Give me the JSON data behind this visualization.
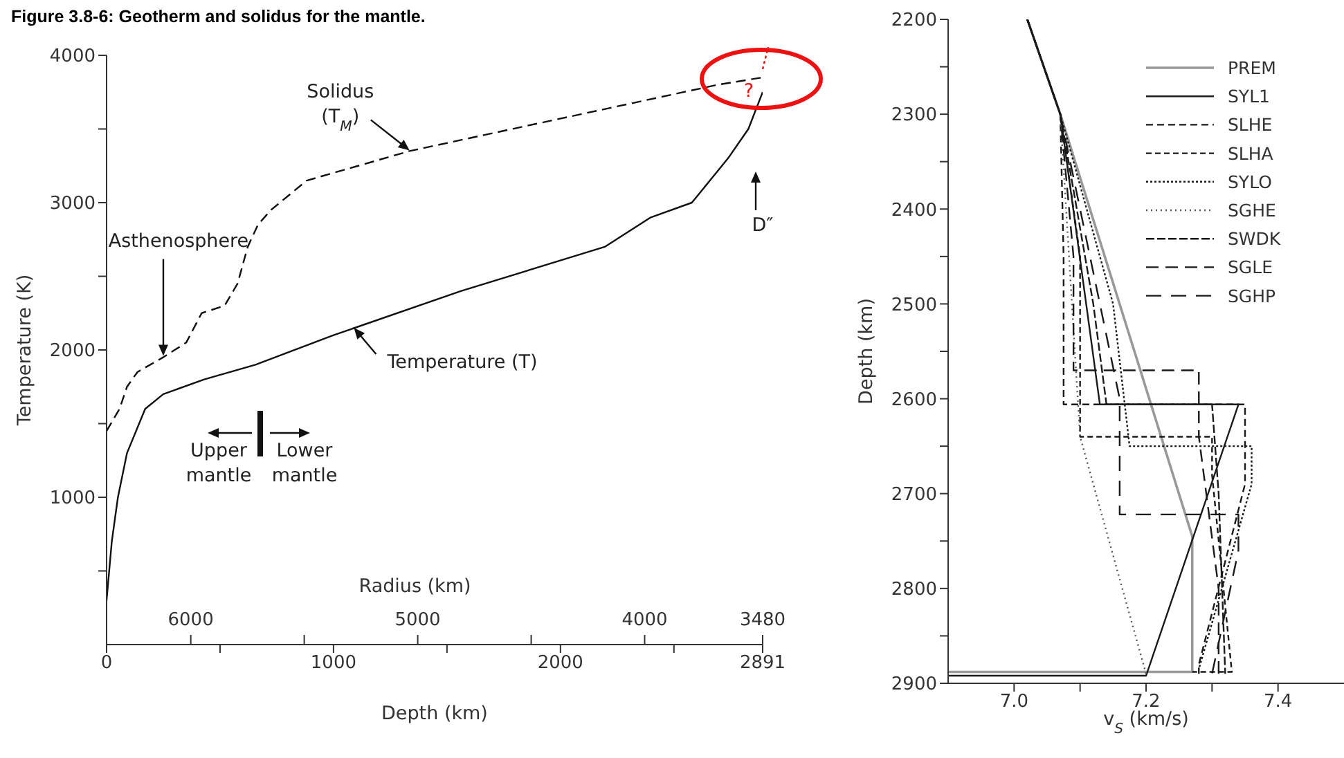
{
  "chart_data": [
    {
      "type": "line",
      "title": "Figure 3.8-6: Geotherm and solidus for the mantle.",
      "xlabel": "Depth (km)",
      "ylabel": "Temperature (K)",
      "x2label": "Radius (km)",
      "xlim": [
        0,
        2891
      ],
      "xticks": [
        0,
        {
          "value": 500,
          "label": null
        },
        1000,
        {
          "value": 1500,
          "label": null
        },
        2000,
        {
          "value": 2500,
          "label": null
        },
        2891
      ],
      "x2lim": [
        6371,
        3480
      ],
      "x2ticks": [
        6000,
        {
          "value": 5500,
          "label": null
        },
        5000,
        {
          "value": 4500,
          "label": null
        },
        4000,
        3480
      ],
      "ylim": [
        0,
        4000
      ],
      "yticks": [
        {
          "value": 500,
          "label": null
        },
        1000,
        {
          "value": 1500,
          "label": null
        },
        2000,
        {
          "value": 2500,
          "label": null
        },
        3000,
        {
          "value": 3500,
          "label": null
        },
        4000
      ],
      "series": [
        {
          "color": "#111111",
          "line_style": "solid",
          "x": [
            0,
            23,
            50,
            90,
            170,
            250,
            430,
            656,
            1000,
            1561,
            2195,
            2398,
            2579,
            2738,
            2828,
            2891
          ],
          "values": [
            300,
            700,
            1000,
            1300,
            1600,
            1700,
            1800,
            1900,
            2100,
            2400,
            2700,
            2900,
            3000,
            3300,
            3500,
            3750
          ]
        },
        {
          "color": "#111111",
          "line_style": "dashed",
          "x": [
            0,
            57,
            90,
            136,
            249,
            351,
            419,
            520,
            577,
            622,
            667,
            724,
            882,
            1109,
            1335,
            1787,
            2240,
            2692,
            2891
          ],
          "values": [
            1450,
            1600,
            1750,
            1850,
            1950,
            2050,
            2250,
            2300,
            2450,
            2700,
            2850,
            2950,
            3150,
            3250,
            3350,
            3500,
            3650,
            3800,
            3850
          ]
        }
      ],
      "annotations": [
        {
          "text": "Solidus (T$_{M}$)",
          "x": 1335,
          "y": 3355
        },
        {
          "text": "Temperature (T)",
          "x": 1090,
          "y": 2150
        },
        {
          "text": "Asthenosphere",
          "x": 250,
          "y": 1960
        },
        "Upper mantle",
        "Lower mantle",
        "D″",
        "?"
      ]
    },
    {
      "type": "line",
      "xlabel": "v$_{S}$ (km/s)",
      "ylabel": "Depth (km)",
      "legend": "top right",
      "xlim": [
        6.9,
        7.5
      ],
      "xticks": [
        {
          "value": 7.0,
          "label": "7.0"
        },
        {
          "value": 7.1,
          "label": null
        },
        7.2,
        {
          "value": 7.3,
          "label": null
        },
        7.4
      ],
      "ylim": [
        2900,
        2200
      ],
      "yticks": [
        2200,
        {
          "value": 2250,
          "label": null
        },
        2300,
        {
          "value": 2350,
          "label": null
        },
        2400,
        {
          "value": 2450,
          "label": null
        },
        2500,
        {
          "value": 2550,
          "label": null
        },
        2600,
        {
          "value": 2650,
          "label": null
        },
        2700,
        {
          "value": 2750,
          "label": null
        },
        2800,
        {
          "value": 2850,
          "label": null
        },
        2900
      ],
      "series": [
        {
          "name": "PREM",
          "color": "#999999",
          "line_style": "solid",
          "x": [
            7.02,
            7.07,
            7.27,
            7.27,
            6.9
          ],
          "values": [
            2200,
            2300,
            2745,
            2888,
            2888
          ]
        },
        {
          "name": "SYL1",
          "color": "#1a1a1a",
          "line_style": "solid",
          "x": [
            7.02,
            7.07,
            7.13,
            7.34,
            7.2,
            6.9
          ],
          "values": [
            2200,
            2300,
            2606,
            2606,
            2892,
            2892
          ]
        },
        {
          "name": "SLHE",
          "color": "#1a1a1a",
          "line_style": "dashed",
          "x": [
            7.02,
            7.07,
            7.075,
            7.075,
            7.35,
            7.35,
            7.28,
            7.28
          ],
          "values": [
            2200,
            2300,
            2450,
            2606,
            2606,
            2690,
            2880,
            2890
          ]
        },
        {
          "name": "SLHA",
          "color": "#1a1a1a",
          "line_style": "dashed",
          "x": [
            7.02,
            7.07,
            7.1,
            7.1,
            7.3,
            7.3,
            7.33,
            7.27
          ],
          "values": [
            2200,
            2300,
            2450,
            2640,
            2640,
            2680,
            2888,
            2888
          ]
        },
        {
          "name": "SYLO",
          "color": "#1a1a1a",
          "line_style": "dotted",
          "x": [
            7.02,
            7.07,
            7.15,
            7.175,
            7.36,
            7.36,
            7.28
          ],
          "values": [
            2200,
            2300,
            2500,
            2650,
            2650,
            2690,
            2885
          ]
        },
        {
          "name": "SGHE",
          "color": "#555555",
          "line_style": "dotted",
          "x": [
            7.02,
            7.07,
            7.1,
            7.2
          ],
          "values": [
            2200,
            2300,
            2640,
            2890
          ]
        },
        {
          "name": "SWDK",
          "color": "#1a1a1a",
          "line_style": "dashed",
          "x": [
            7.02,
            7.07,
            7.12,
            7.14,
            7.3,
            7.31,
            7.32
          ],
          "values": [
            2200,
            2300,
            2500,
            2606,
            2606,
            2700,
            2890
          ]
        },
        {
          "name": "SGLE",
          "color": "#1a1a1a",
          "line_style": "dashed",
          "x": [
            7.02,
            7.07,
            7.09,
            7.09,
            7.28,
            7.28,
            7.31,
            7.31
          ],
          "values": [
            2200,
            2300,
            2450,
            2570,
            2570,
            2640,
            2800,
            2890
          ]
        },
        {
          "name": "SGHP",
          "color": "#1a1a1a",
          "line_style": "dashed",
          "x": [
            7.02,
            7.07,
            7.13,
            7.16,
            7.16,
            7.34,
            7.34,
            7.3
          ],
          "values": [
            2200,
            2300,
            2500,
            2600,
            2722,
            2722,
            2760,
            2890
          ]
        }
      ]
    }
  ]
}
